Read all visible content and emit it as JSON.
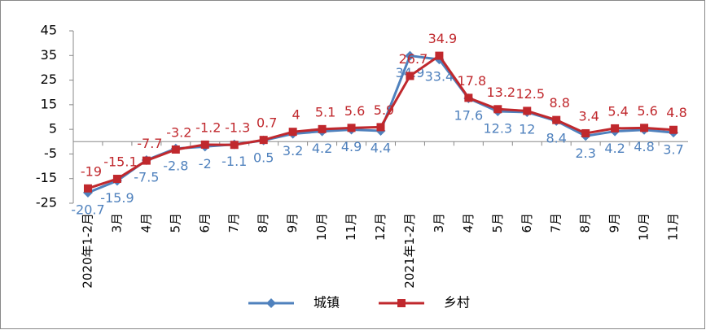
{
  "chart_data": {
    "type": "line",
    "categories": [
      "2020年1-2月",
      "3月",
      "4月",
      "5月",
      "6月",
      "7月",
      "8月",
      "9月",
      "10月",
      "11月",
      "12月",
      "2021年1-2月",
      "3月",
      "4月",
      "5月",
      "6月",
      "7月",
      "8月",
      "9月",
      "10月",
      "11月"
    ],
    "series": [
      {
        "name": "城镇",
        "color": "#4f81bd",
        "values": [
          -20.7,
          -15.9,
          -7.5,
          -2.8,
          -2,
          -1.1,
          0.5,
          3.2,
          4.2,
          4.9,
          4.4,
          34.9,
          33.4,
          17.6,
          12.3,
          12,
          8.4,
          2.3,
          4.2,
          4.8,
          3.7
        ]
      },
      {
        "name": "乡村",
        "color": "#c0282d",
        "values": [
          -19,
          -15.1,
          -7.7,
          -3.2,
          -1.2,
          -1.3,
          0.7,
          4,
          5.1,
          5.6,
          5.9,
          26.7,
          34.9,
          17.8,
          13.2,
          12.5,
          8.8,
          3.4,
          5.4,
          5.6,
          4.8
        ]
      }
    ],
    "ylim": [
      -25,
      45
    ],
    "yticks": [
      -25,
      -15,
      -5,
      5,
      15,
      25,
      35,
      45
    ],
    "grid": false,
    "legend": "bottom"
  }
}
